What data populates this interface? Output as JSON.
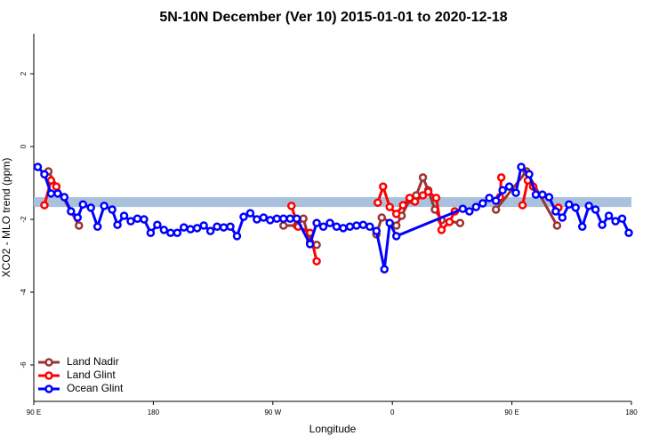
{
  "chart_data": {
    "type": "line",
    "title": "5N-10N December (Ver 10)   2015-01-01 to 2020-12-18",
    "x_label": "Longitude",
    "y_label": "XCO2 - MLO trend (ppm)",
    "xlim": [
      90,
      540
    ],
    "xticks": [
      {
        "value": 90,
        "label": "90 E"
      },
      180,
      {
        "value": 270,
        "label": "90 W"
      },
      {
        "value": 360,
        "label": "0"
      },
      {
        "value": 450,
        "label": "90 E"
      },
      {
        "value": 540,
        "label": "180"
      }
    ],
    "ylim": [
      -7,
      3.1
    ],
    "yticks": [
      2,
      0,
      -2,
      -4,
      -6
    ],
    "reference_band": [
      -1.66,
      -1.39
    ],
    "band_color": "#a9c1dd",
    "legend": "bottom-left",
    "series": [
      {
        "name": "Land Nadir",
        "color": "#9b3333",
        "x": [
          101,
          124,
          null,
          278,
          288,
          293,
          298,
          303,
          null,
          348,
          352,
          363,
          367,
          373,
          378,
          383,
          387,
          392,
          397,
          411,
          null,
          438,
          461,
          484
        ],
        "values": [
          -0.68,
          -2.17,
          null,
          -2.17,
          -2.17,
          -1.98,
          -2.63,
          -2.7,
          null,
          -2.41,
          -1.95,
          -2.17,
          -1.9,
          -1.46,
          -1.34,
          -0.85,
          -1.2,
          -1.73,
          -2.02,
          -2.1,
          null,
          -1.73,
          -0.68,
          -2.17
        ]
      },
      {
        "name": "Land Glint",
        "color": "#ff0000",
        "x": [
          98,
          103,
          107,
          null,
          284,
          289,
          298,
          303,
          null,
          349,
          353,
          358,
          363,
          368,
          373,
          377,
          383,
          387,
          393,
          397,
          403,
          407,
          null,
          441,
          442,
          null,
          458,
          462,
          466,
          null,
          485
        ],
        "values": [
          -1.61,
          -0.93,
          -1.1,
          null,
          -1.63,
          -2.2,
          -2.37,
          -3.15,
          null,
          -1.54,
          -1.1,
          -1.66,
          -1.85,
          -1.61,
          -1.41,
          -1.51,
          -1.34,
          -1.24,
          -1.41,
          -2.29,
          -2.07,
          -1.78,
          null,
          -1.39,
          -0.85,
          null,
          -1.61,
          -0.93,
          -1.1,
          null,
          -1.68
        ]
      },
      {
        "name": "Ocean Glint",
        "color": "#0000ff",
        "x": [
          93,
          98,
          103,
          108,
          113,
          118,
          123,
          127,
          133,
          138,
          143,
          149,
          153,
          158,
          163,
          168,
          173,
          178,
          183,
          188,
          193,
          198,
          203,
          208,
          213,
          218,
          223,
          228,
          233,
          238,
          243,
          248,
          253,
          258,
          263,
          268,
          273,
          278,
          283,
          288,
          298,
          303,
          308,
          313,
          318,
          323,
          328,
          333,
          338,
          343,
          348,
          354,
          358,
          363,
          413,
          418,
          423,
          428,
          433,
          438,
          443,
          448,
          453,
          457,
          463,
          468,
          473,
          478,
          483,
          488,
          493,
          498,
          503,
          508,
          513,
          518,
          523,
          528,
          533,
          538
        ],
        "values": [
          -0.56,
          -0.76,
          -1.29,
          -1.29,
          -1.39,
          -1.78,
          -1.95,
          -1.59,
          -1.68,
          -2.2,
          -1.63,
          -1.73,
          -2.15,
          -1.9,
          -2.05,
          -1.98,
          -2.0,
          -2.37,
          -2.15,
          -2.29,
          -2.37,
          -2.37,
          -2.22,
          -2.27,
          -2.24,
          -2.17,
          -2.32,
          -2.2,
          -2.22,
          -2.2,
          -2.46,
          -1.93,
          -1.83,
          -2.0,
          -1.95,
          -2.02,
          -1.98,
          -1.98,
          -1.98,
          -1.98,
          -2.68,
          -2.1,
          -2.2,
          -2.1,
          -2.2,
          -2.24,
          -2.2,
          -2.17,
          -2.15,
          -2.2,
          -2.32,
          -3.37,
          -2.1,
          -2.46,
          -1.71,
          -1.78,
          -1.66,
          -1.56,
          -1.41,
          -1.49,
          -1.2,
          -1.1,
          -1.27,
          -0.56,
          -0.76,
          -1.32,
          -1.32,
          -1.39,
          -1.78,
          -1.95,
          -1.59,
          -1.68,
          -2.2,
          -1.63,
          -1.73,
          -2.15,
          -1.9,
          -2.05,
          -1.98,
          -2.37
        ]
      }
    ]
  }
}
